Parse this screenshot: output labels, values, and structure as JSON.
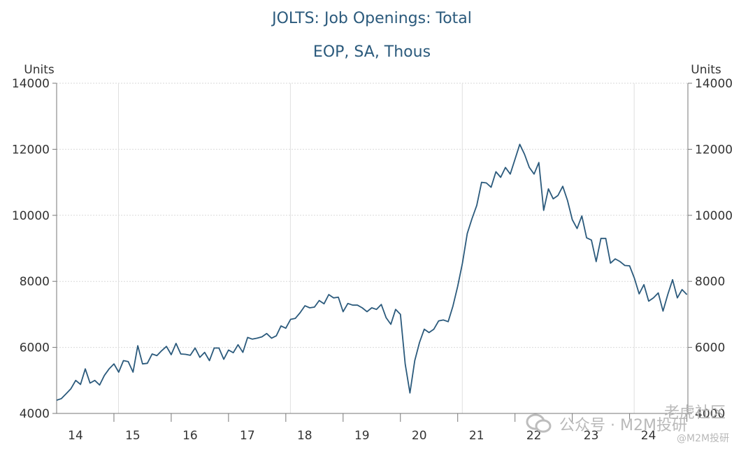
{
  "chart_data": {
    "type": "line",
    "title": "JOLTS: Job Openings: Total",
    "subtitle": "EOP, SA, Thous",
    "ylabel_left": "Units",
    "ylabel_right": "Units",
    "ylim": [
      4000,
      14000
    ],
    "y_ticks": [
      4000,
      6000,
      8000,
      10000,
      12000,
      14000
    ],
    "x_tick_labels": [
      "14",
      "15",
      "16",
      "17",
      "18",
      "19",
      "20",
      "21",
      "22",
      "23",
      "24"
    ],
    "grid": true,
    "line_color": "#2b5a7c",
    "start": "2014-01",
    "frequency": "monthly",
    "series": [
      {
        "values": [
          4400,
          4450,
          4600,
          4750,
          5000,
          4880,
          5350,
          4920,
          5000,
          4860,
          5150,
          5350,
          5500,
          5250,
          5600,
          5570,
          5250,
          6050,
          5500,
          5520,
          5800,
          5750,
          5900,
          6030,
          5780,
          6120,
          5800,
          5790,
          5760,
          5980,
          5700,
          5850,
          5600,
          5980,
          5980,
          5640,
          5920,
          5840,
          6080,
          5850,
          6300,
          6250,
          6280,
          6320,
          6420,
          6280,
          6350,
          6650,
          6580,
          6850,
          6880,
          7050,
          7260,
          7200,
          7220,
          7420,
          7320,
          7600,
          7500,
          7520,
          7080,
          7330,
          7280,
          7280,
          7200,
          7080,
          7200,
          7150,
          7300,
          6900,
          6700,
          7150,
          7000,
          5500,
          4620,
          5600,
          6150,
          6550,
          6450,
          6550,
          6800,
          6830,
          6780,
          7250,
          7850,
          8550,
          9450,
          9900,
          10300,
          11000,
          10980,
          10850,
          11320,
          11150,
          11450,
          11250,
          11700,
          12150,
          11850,
          11450,
          11250,
          11600,
          10150,
          10800,
          10500,
          10600,
          10880,
          10450,
          9870,
          9600,
          9980,
          9320,
          9250,
          8600,
          9300,
          9300,
          8550,
          8680,
          8600,
          8480,
          8470,
          8100,
          7620,
          7900,
          7400,
          7500,
          7650,
          7100,
          7600,
          8050,
          7500,
          7750,
          7600
        ]
      }
    ]
  },
  "watermark": {
    "line1": "公众号 · M2M投研",
    "line2": "老虎社区",
    "line3": "@M2M投研"
  }
}
